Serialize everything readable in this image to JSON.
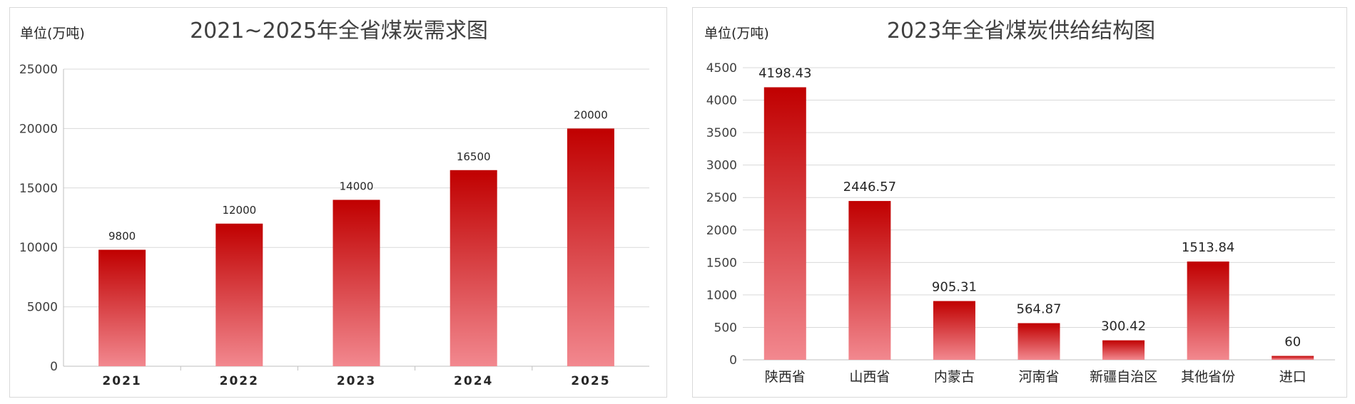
{
  "colors": {
    "bar_top": "#c00000",
    "bar_bottom": "#f2888f",
    "grid": "#d9d9d9"
  },
  "chart_data": [
    {
      "type": "bar",
      "title": "2021~2025年全省煤炭需求图",
      "unit_label": "单位(万吨)",
      "categories": [
        "2021",
        "2022",
        "2023",
        "2024",
        "2025"
      ],
      "values": [
        9800,
        12000,
        14000,
        16500,
        20000
      ],
      "data_labels": [
        "9800",
        "12000",
        "14000",
        "16500",
        "20000"
      ],
      "ylim": [
        0,
        25000
      ],
      "yticks": [
        "0",
        "5000",
        "10000",
        "15000",
        "20000",
        "25000"
      ],
      "grid": true
    },
    {
      "type": "bar",
      "title": "2023年全省煤炭供给结构图",
      "unit_label": "单位(万吨)",
      "categories": [
        "陕西省",
        "山西省",
        "内蒙古",
        "河南省",
        "新疆自治区",
        "其他省份",
        "进口"
      ],
      "values": [
        4198.43,
        2446.57,
        905.31,
        564.87,
        300.42,
        1513.84,
        60
      ],
      "data_labels": [
        "4198.43",
        "2446.57",
        "905.31",
        "564.87",
        "300.42",
        "1513.84",
        "60"
      ],
      "ylim": [
        0,
        4500
      ],
      "yticks": [
        "0",
        "500",
        "1000",
        "1500",
        "2000",
        "2500",
        "3000",
        "3500",
        "4000",
        "4500"
      ],
      "grid": true
    }
  ]
}
